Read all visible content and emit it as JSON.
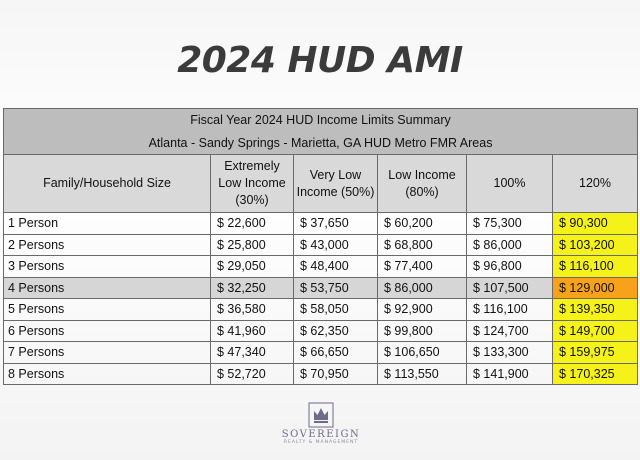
{
  "title": "2024 HUD AMI",
  "summary": {
    "line1": "Fiscal Year 2024 HUD Income Limits Summary",
    "line2": "Atlanta - Sandy Springs - Marietta, GA HUD Metro FMR Areas"
  },
  "headers": {
    "size": "Family/Household Size",
    "extremely_low_1": "Extremely",
    "extremely_low_2": "Low Income",
    "extremely_low_3": "(30%)",
    "very_low_1": "Very Low",
    "very_low_2": "Income (50%)",
    "low_1": "Low Income",
    "low_2": "(80%)",
    "p100": "100%",
    "p120": "120%"
  },
  "rows": [
    {
      "size": "1 Person",
      "c30": "$ 22,600",
      "c50": "$ 37,650",
      "c80": "$ 60,200",
      "c100": "$ 75,300",
      "c120": "$ 90,300"
    },
    {
      "size": "2 Persons",
      "c30": "$ 25,800",
      "c50": "$ 43,000",
      "c80": "$ 68,800",
      "c100": "$ 86,000",
      "c120": "$ 103,200"
    },
    {
      "size": "3 Persons",
      "c30": "$ 29,050",
      "c50": "$ 48,400",
      "c80": "$ 77,400",
      "c100": "$ 96,800",
      "c120": "$ 116,100"
    },
    {
      "size": "4 Persons",
      "c30": "$ 32,250",
      "c50": "$ 53,750",
      "c80": "$ 86,000",
      "c100": "$ 107,500",
      "c120": "$ 129,000"
    },
    {
      "size": "5 Persons",
      "c30": "$ 36,580",
      "c50": "$ 58,050",
      "c80": "$ 92,900",
      "c100": "$ 116,100",
      "c120": "$ 139,350"
    },
    {
      "size": "6 Persons",
      "c30": "$ 41,960",
      "c50": "$ 62,350",
      "c80": "$ 99,800",
      "c100": "$ 124,700",
      "c120": "$ 149,700"
    },
    {
      "size": "7 Persons",
      "c30": "$ 47,340",
      "c50": "$ 66,650",
      "c80": "$ 106,650",
      "c100": "$ 133,300",
      "c120": "$ 159,975"
    },
    {
      "size": "8 Persons",
      "c30": "$ 52,720",
      "c50": "$ 70,950",
      "c80": "$ 113,550",
      "c100": "$ 141,900",
      "c120": "$ 170,325"
    }
  ],
  "colors": {
    "highlight_yellow": "#f5f21a",
    "highlight_orange": "#f7a21a",
    "header_grey": "#bdbdbd"
  },
  "logo": {
    "icon": "crown-icon",
    "name": "SOVEREIGN",
    "tagline": "REALTY & MANAGEMENT"
  }
}
